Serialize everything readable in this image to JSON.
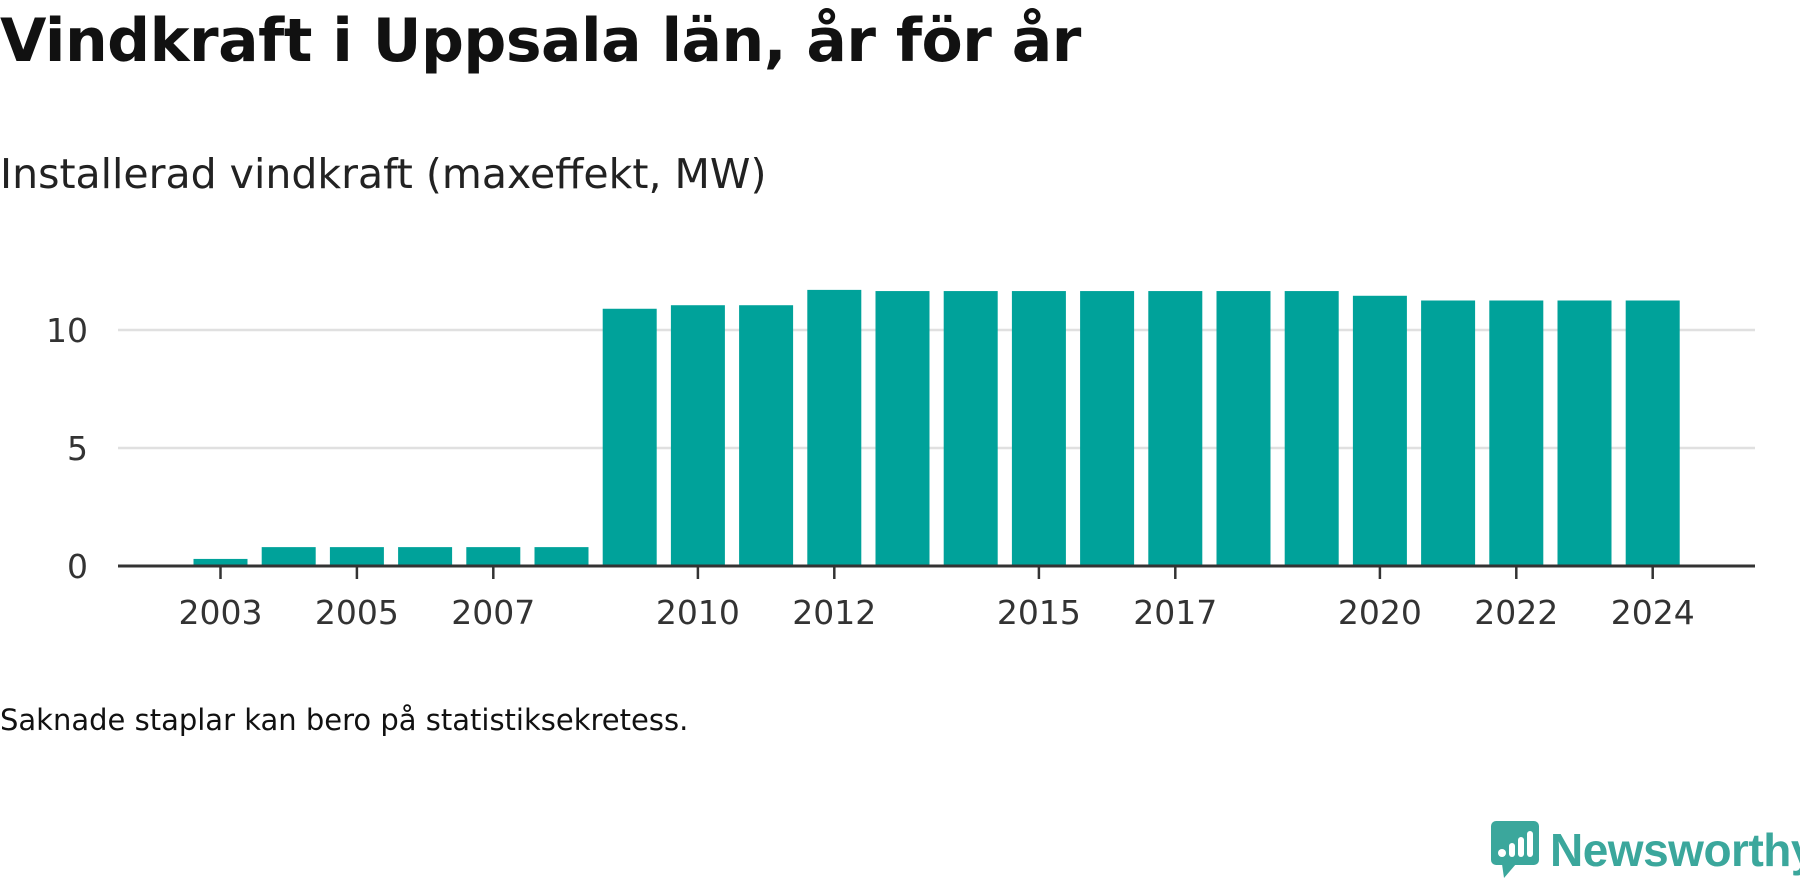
{
  "title": "Vindkraft i Uppsala län, år för år",
  "subtitle": "Installerad vindkraft (maxeffekt, MW)",
  "footnote": "Saknade staplar kan bero på statistiksekretess.",
  "brand": {
    "name": "Newsworthy",
    "icon": "newsworthy-logo-icon",
    "color": "#3ba79c"
  },
  "colors": {
    "bar": "#00a29a",
    "grid": "#e0e0e0",
    "axis": "#333333"
  },
  "chart_data": {
    "type": "bar",
    "categories": [
      "2003",
      "2004",
      "2005",
      "2006",
      "2007",
      "2008",
      "2009",
      "2010",
      "2011",
      "2012",
      "2013",
      "2014",
      "2015",
      "2016",
      "2017",
      "2018",
      "2019",
      "2020",
      "2021",
      "2022",
      "2023",
      "2024"
    ],
    "values": [
      0.3,
      0.8,
      0.8,
      0.8,
      0.8,
      0.8,
      10.9,
      11.05,
      11.05,
      11.7,
      11.65,
      11.65,
      11.65,
      11.65,
      11.65,
      11.65,
      11.65,
      11.45,
      11.25,
      11.25,
      11.25,
      11.25
    ],
    "x_tick_labels": [
      "2003",
      "2005",
      "2007",
      "2010",
      "2012",
      "2015",
      "2017",
      "2020",
      "2022",
      "2024"
    ],
    "y_ticks": [
      0,
      5,
      10
    ],
    "ylim": [
      0,
      12.5
    ],
    "grid": true,
    "xlabel": "",
    "ylabel": ""
  }
}
